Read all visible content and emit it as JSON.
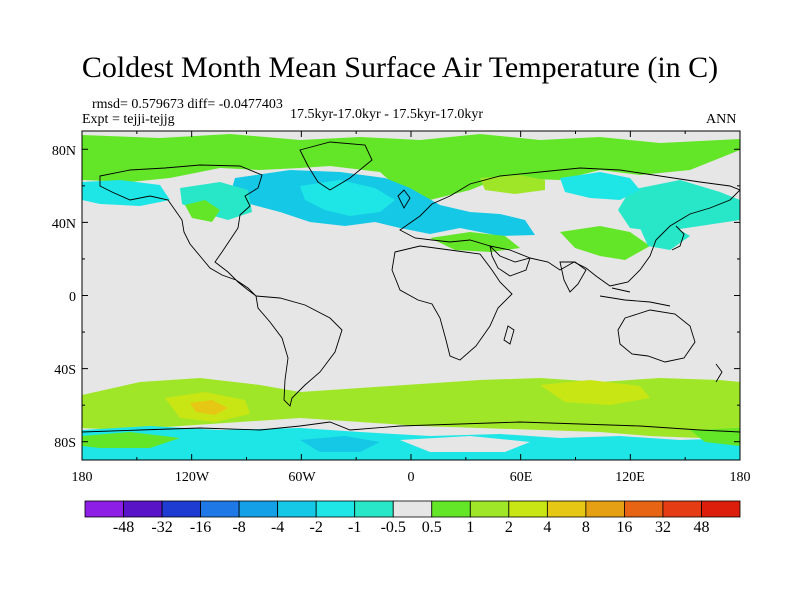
{
  "title": "Coldest Month Mean Surface Air Temperature (in C)",
  "stats": {
    "rmsd_diff": "rmsd= 0.579673 diff= -0.0477403",
    "expt": "Expt = tejji-tejjg",
    "period": "17.5kyr-17.0kyr - 17.5kyr-17.0kyr",
    "season": "ANN"
  },
  "chart_data": {
    "type": "heatmap",
    "x_ticks": [
      "180",
      "120W",
      "60W",
      "0",
      "60E",
      "120E",
      "180"
    ],
    "y_ticks": [
      "80N",
      "40N",
      "0",
      "40S",
      "80S"
    ],
    "xlim": [
      -180,
      180
    ],
    "ylim": [
      -90,
      90
    ],
    "colorbar": {
      "labels": [
        "-48",
        "-32",
        "-16",
        "-8",
        "-4",
        "-2",
        "-1",
        "-0.5",
        "0.5",
        "1",
        "2",
        "4",
        "8",
        "16",
        "32",
        "48"
      ],
      "colors": [
        "#8c1ee6",
        "#5a14c8",
        "#1e3cd2",
        "#1e78e6",
        "#14a0e6",
        "#14c8e6",
        "#1ee6e6",
        "#28e6c8",
        "#e6e6e6",
        "#64e628",
        "#a0e628",
        "#c8e614",
        "#e6c814",
        "#e6a014",
        "#e66414",
        "#e63c14",
        "#dc1e0a"
      ]
    }
  }
}
